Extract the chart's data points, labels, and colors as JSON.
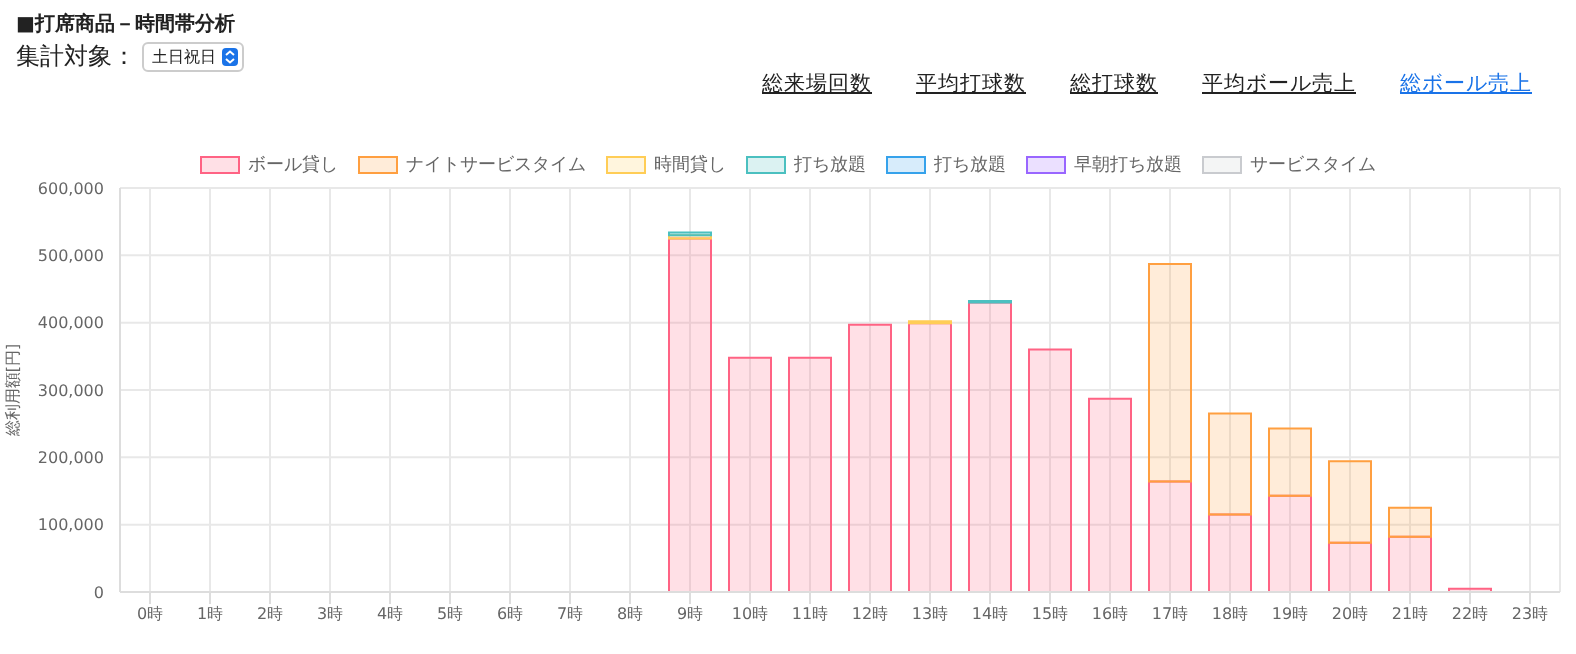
{
  "chart_data": {
    "type": "bar",
    "title": "■打席商品－時間帯分析",
    "annotations": [
      "集計対象：",
      "土日祝日",
      "総来場回数",
      "平均打球数",
      "総打球数",
      "平均ボール売上",
      "総ボール売上"
    ],
    "categories": [
      "0時",
      "1時",
      "2時",
      "3時",
      "4時",
      "5時",
      "6時",
      "7時",
      "8時",
      "9時",
      "10時",
      "11時",
      "12時",
      "13時",
      "14時",
      "15時",
      "16時",
      "17時",
      "18時",
      "19時",
      "20時",
      "21時",
      "22時",
      "23時"
    ],
    "ylabel": "総利用額[円]",
    "stacked": true,
    "series": [
      {
        "name": "ボール貸し",
        "color": "#ff6384",
        "values": [
          0,
          0,
          0,
          0,
          0,
          0,
          0,
          0,
          0,
          525000,
          348000,
          348000,
          397000,
          399000,
          430000,
          360000,
          287000,
          164000,
          115000,
          143000,
          73000,
          82000,
          5000,
          0
        ]
      },
      {
        "name": "ナイトサービスタイム",
        "color": "#ff9f40",
        "values": [
          0,
          0,
          0,
          0,
          0,
          0,
          0,
          0,
          0,
          0,
          0,
          0,
          0,
          0,
          0,
          0,
          0,
          323000,
          150000,
          100000,
          121000,
          43000,
          0,
          0
        ]
      },
      {
        "name": "時間貸し",
        "color": "#ffcd56",
        "values": [
          0,
          0,
          0,
          0,
          0,
          0,
          0,
          0,
          0,
          5000,
          0,
          0,
          0,
          3000,
          0,
          0,
          0,
          0,
          0,
          0,
          0,
          0,
          0,
          0
        ]
      },
      {
        "name": "打ち放題",
        "color": "#4bc0c0",
        "values": [
          0,
          0,
          0,
          0,
          0,
          0,
          0,
          0,
          0,
          4000,
          0,
          0,
          0,
          0,
          2000,
          0,
          0,
          0,
          0,
          0,
          0,
          0,
          0,
          0
        ]
      },
      {
        "name": "打ち放題",
        "color": "#36a2eb",
        "values": [
          0,
          0,
          0,
          0,
          0,
          0,
          0,
          0,
          0,
          0,
          0,
          0,
          0,
          0,
          0,
          0,
          0,
          0,
          0,
          0,
          0,
          0,
          0,
          0
        ]
      },
      {
        "name": "早朝打ち放題",
        "color": "#9966ff",
        "values": [
          0,
          0,
          0,
          0,
          0,
          0,
          0,
          0,
          0,
          0,
          0,
          0,
          0,
          0,
          0,
          0,
          0,
          0,
          0,
          0,
          0,
          0,
          0,
          0
        ]
      },
      {
        "name": "サービスタイム",
        "color": "#c9cbcf",
        "values": [
          0,
          0,
          0,
          0,
          0,
          0,
          0,
          0,
          0,
          0,
          0,
          0,
          0,
          0,
          0,
          0,
          0,
          0,
          0,
          0,
          0,
          0,
          0,
          0
        ]
      }
    ],
    "ylim": [
      0,
      600000
    ],
    "yticks": [
      {
        "value": 0,
        "label": "0"
      },
      {
        "value": 100000,
        "label": "100,000"
      },
      {
        "value": 200000,
        "label": "200,000"
      },
      {
        "value": 300000,
        "label": "300,000"
      },
      {
        "value": 400000,
        "label": "400,000"
      },
      {
        "value": 500000,
        "label": "500,000"
      },
      {
        "value": 600000,
        "label": "600,000"
      }
    ],
    "grid": true,
    "legend": "top"
  }
}
